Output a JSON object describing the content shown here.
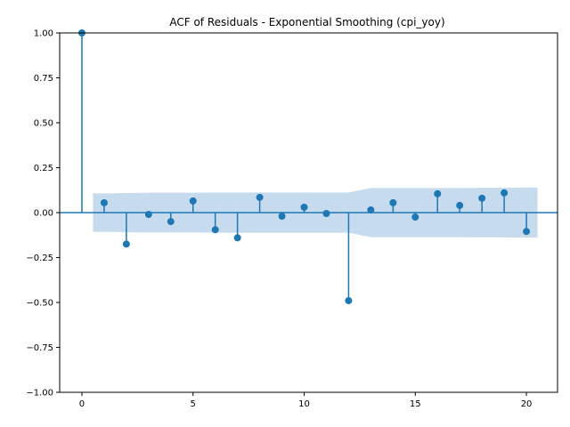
{
  "chart_data": {
    "type": "stem",
    "title": "ACF of Residuals - Exponential Smoothing (cpi_yoy)",
    "xlabel": "",
    "ylabel": "",
    "xlim": [
      -1,
      21.4
    ],
    "ylim": [
      -1.0,
      1.0
    ],
    "x_ticks": [
      0,
      5,
      10,
      15,
      20
    ],
    "x_tick_labels": [
      "0",
      "5",
      "10",
      "15",
      "20"
    ],
    "y_ticks": [
      -1.0,
      -0.75,
      -0.5,
      -0.25,
      0.0,
      0.25,
      0.5,
      0.75,
      1.0
    ],
    "y_tick_labels": [
      "−1.00",
      "−0.75",
      "−0.50",
      "−0.25",
      "0.00",
      "0.25",
      "0.50",
      "0.75",
      "1.00"
    ],
    "grid": false,
    "lags": [
      0,
      1,
      2,
      3,
      4,
      5,
      6,
      7,
      8,
      9,
      10,
      11,
      12,
      13,
      14,
      15,
      16,
      17,
      18,
      19,
      20
    ],
    "values": [
      1.0,
      0.055,
      -0.175,
      -0.01,
      -0.05,
      0.065,
      -0.095,
      -0.14,
      0.085,
      -0.02,
      0.03,
      -0.005,
      -0.49,
      0.015,
      0.055,
      -0.025,
      0.105,
      0.04,
      0.08,
      0.11,
      -0.105
    ],
    "confidence_band": {
      "lags": [
        0.5,
        1,
        2,
        3,
        4,
        5,
        6,
        7,
        8,
        9,
        10,
        11,
        12,
        13,
        14,
        15,
        16,
        17,
        18,
        19,
        20,
        20.5
      ],
      "upper": [
        0.107,
        0.107,
        0.109,
        0.111,
        0.111,
        0.111,
        0.112,
        0.112,
        0.112,
        0.112,
        0.112,
        0.112,
        0.112,
        0.137,
        0.137,
        0.137,
        0.137,
        0.137,
        0.138,
        0.138,
        0.139,
        0.139
      ]
    },
    "colors": {
      "stem": "#1f77b4",
      "band": "#c6dbee",
      "axis": "#000000"
    }
  }
}
